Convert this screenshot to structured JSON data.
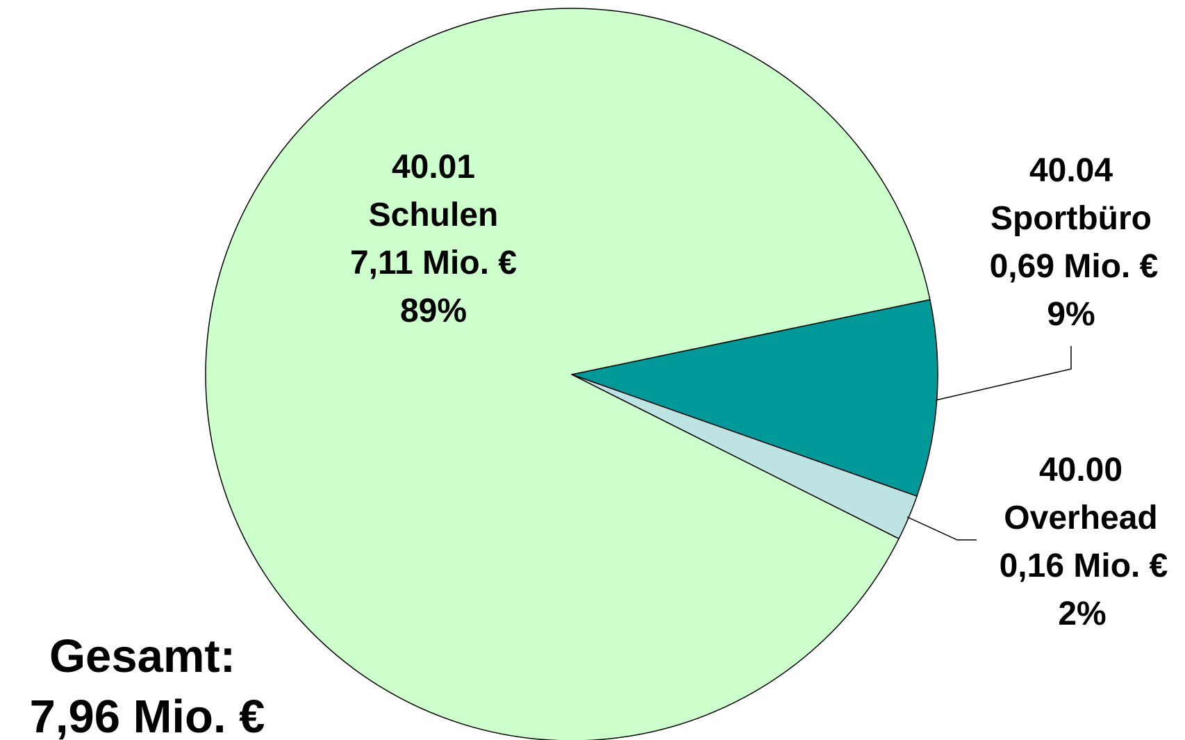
{
  "chart_data": {
    "type": "pie",
    "slices": [
      {
        "code": "40.01",
        "name": "Schulen",
        "amount_label": "7,11 Mio. €",
        "value": 7.11,
        "percent_label": "89%",
        "color": "#ccffcc"
      },
      {
        "code": "40.04",
        "name": "Sportbüro",
        "amount_label": "0,69 Mio. €",
        "value": 0.69,
        "percent_label": "9%",
        "color": "#009999"
      },
      {
        "code": "40.00",
        "name": "Overhead",
        "amount_label": "0,16 Mio. €",
        "value": 0.16,
        "percent_label": "2%",
        "color": "#bde3e3"
      }
    ],
    "total": {
      "label": "Gesamt:",
      "value_label": "7,96 Mio. €"
    },
    "legend": false
  }
}
